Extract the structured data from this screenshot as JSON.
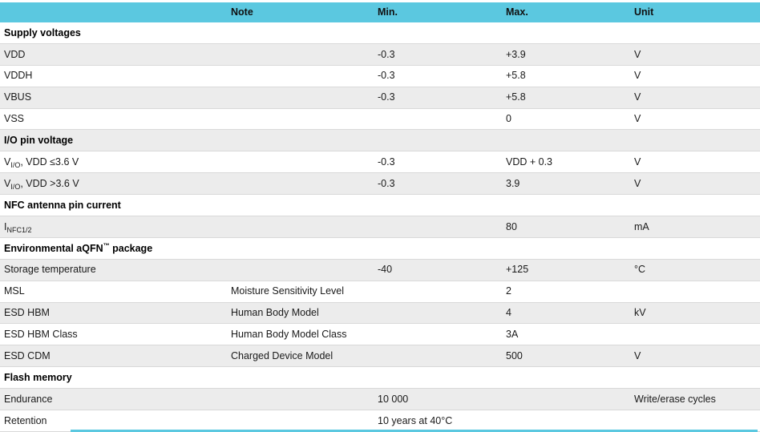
{
  "table": {
    "accent_color": "#5bc8e0",
    "stripe_color": "#ececec",
    "border_color": "#d9d9d9",
    "columns": [
      {
        "key": "name",
        "label": ""
      },
      {
        "key": "note",
        "label": "Note"
      },
      {
        "key": "min",
        "label": "Min."
      },
      {
        "key": "max",
        "label": "Max."
      },
      {
        "key": "unit",
        "label": "Unit"
      }
    ],
    "rows": [
      {
        "type": "section",
        "name": "Supply voltages"
      },
      {
        "type": "data",
        "name": "VDD",
        "note": "",
        "min": "-0.3",
        "max": "+3.9",
        "unit": "V"
      },
      {
        "type": "data",
        "name": "VDDH",
        "note": "",
        "min": "-0.3",
        "max": "+5.8",
        "unit": "V"
      },
      {
        "type": "data",
        "name": "VBUS",
        "note": "",
        "min": "-0.3",
        "max": "+5.8",
        "unit": "V"
      },
      {
        "type": "data",
        "name": "VSS",
        "note": "",
        "min": "",
        "max": "0",
        "unit": "V"
      },
      {
        "type": "section",
        "name": "I/O pin voltage"
      },
      {
        "type": "data",
        "name": "V",
        "sub": "I/O",
        "after": ", VDD ≤3.6 V",
        "note": "",
        "min": "-0.3",
        "max": "VDD + 0.3",
        "unit": "V"
      },
      {
        "type": "data",
        "name": "V",
        "sub": "I/O",
        "after": ", VDD >3.6 V",
        "note": "",
        "min": "-0.3",
        "max": "3.9",
        "unit": "V"
      },
      {
        "type": "section",
        "name": "NFC antenna pin current"
      },
      {
        "type": "data",
        "name": "I",
        "sub": "NFC1/2",
        "note": "",
        "min": "",
        "max": "80",
        "unit": "mA"
      },
      {
        "type": "section",
        "name": "Environmental aQFN",
        "sup": "™",
        "after": " package"
      },
      {
        "type": "data",
        "name": "Storage temperature",
        "note": "",
        "min": "-40",
        "max": "+125",
        "unit": "°C"
      },
      {
        "type": "data",
        "name": "MSL",
        "note": "Moisture Sensitivity Level",
        "min": "",
        "max": "2",
        "unit": ""
      },
      {
        "type": "data",
        "name": "ESD HBM",
        "note": "Human Body Model",
        "min": "",
        "max": "4",
        "unit": "kV"
      },
      {
        "type": "data",
        "name": "ESD HBM Class",
        "note": "Human Body Model Class",
        "min": "",
        "max": "3A",
        "unit": ""
      },
      {
        "type": "data",
        "name": "ESD CDM",
        "note": "Charged Device Model",
        "min": "",
        "max": "500",
        "unit": "V"
      },
      {
        "type": "section",
        "name": "Flash memory"
      },
      {
        "type": "data",
        "name": "Endurance",
        "note": "",
        "min": "10 000",
        "max": "",
        "unit": "Write/erase cycles"
      },
      {
        "type": "data",
        "name": "Retention",
        "note": "",
        "min": "10 years at 40°C",
        "max": "",
        "unit": ""
      }
    ]
  }
}
